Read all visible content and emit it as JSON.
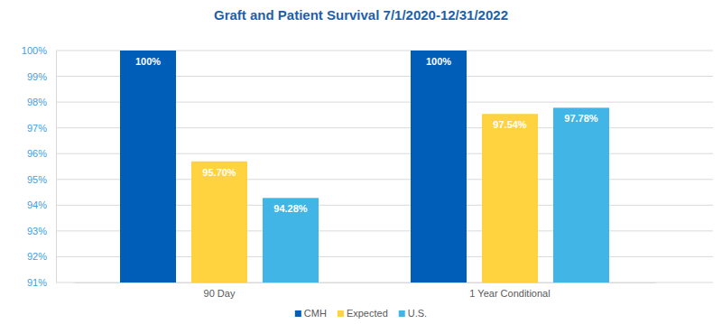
{
  "chart_data": {
    "type": "bar",
    "title": "Graft and Patient Survival 7/1/2020-12/31/2022",
    "categories": [
      "90 Day",
      "1 Year Conditional"
    ],
    "series": [
      {
        "name": "CMH",
        "color": "#005eb8",
        "values": [
          100,
          100
        ],
        "value_labels": [
          "100%",
          "100%"
        ]
      },
      {
        "name": "Expected",
        "color": "#ffd23f",
        "values": [
          95.7,
          97.54
        ],
        "value_labels": [
          "95.70%",
          "97.54%"
        ]
      },
      {
        "name": "U.S.",
        "color": "#41b6e6",
        "values": [
          94.28,
          97.78
        ],
        "value_labels": [
          "94.28%",
          "97.78%"
        ]
      }
    ],
    "ylim": [
      91,
      100
    ],
    "yticks": [
      {
        "value": 91,
        "label": "91%"
      },
      {
        "value": 92,
        "label": "92%"
      },
      {
        "value": 93,
        "label": "93%"
      },
      {
        "value": 94,
        "label": "94%"
      },
      {
        "value": 95,
        "label": "95%"
      },
      {
        "value": 96,
        "label": "96%"
      },
      {
        "value": 97,
        "label": "97%"
      },
      {
        "value": 98,
        "label": "98%"
      },
      {
        "value": 99,
        "label": "99%"
      },
      {
        "value": 100,
        "label": "100%"
      }
    ],
    "grid": true,
    "data_labels": true,
    "legend": "bottom"
  }
}
